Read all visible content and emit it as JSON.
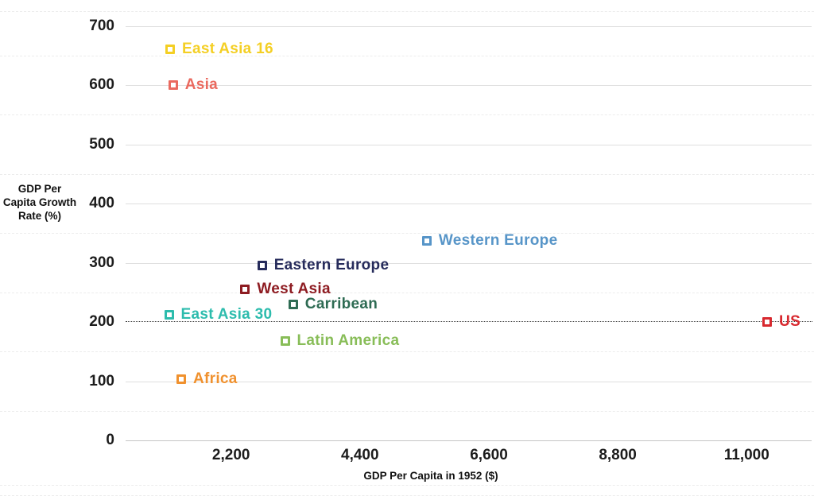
{
  "chart_data": {
    "type": "scatter",
    "title": "",
    "xlabel": "GDP Per Capita in 1952 ($)",
    "ylabel": "GDP Per Capita Growth Rate (%)",
    "ylabel_lines": [
      "GDP Per",
      "Capita Growth",
      "Rate (%)"
    ],
    "xlim": [
      400,
      12000
    ],
    "ylim": [
      0,
      725
    ],
    "grid_on": true,
    "legend": "labels-next-to-points",
    "marker_shape": "hollow-square",
    "text_color": "#1c1c1c",
    "x_ticks": [
      {
        "value": 2200,
        "label": "2,200"
      },
      {
        "value": 4400,
        "label": "4,400"
      },
      {
        "value": 6600,
        "label": "6,600"
      },
      {
        "value": 8800,
        "label": "8,800"
      },
      {
        "value": 11000,
        "label": "11,000"
      }
    ],
    "y_ticks": [
      {
        "value": 0,
        "label": "0"
      },
      {
        "value": 100,
        "label": "100"
      },
      {
        "value": 200,
        "label": "200"
      },
      {
        "value": 300,
        "label": "300"
      },
      {
        "value": 400,
        "label": "400"
      },
      {
        "value": 500,
        "label": "500"
      },
      {
        "value": 600,
        "label": "600"
      },
      {
        "value": 700,
        "label": "700"
      }
    ],
    "minor_gridline_values": [
      725,
      650,
      550,
      450,
      350,
      250,
      150,
      50,
      -75,
      -92
    ],
    "reference_line": {
      "value": 200,
      "style": "dotted",
      "color": "#3c3c3c"
    },
    "series": [
      {
        "name": "East Asia 16",
        "x": 1160,
        "y": 660,
        "color": "#F4CF24"
      },
      {
        "name": "Asia",
        "x": 1210,
        "y": 600,
        "color": "#EA6A5F"
      },
      {
        "name": "Western Europe",
        "x": 5540,
        "y": 337,
        "color": "#5795C8"
      },
      {
        "name": "Eastern Europe",
        "x": 2730,
        "y": 295,
        "color": "#262B5B"
      },
      {
        "name": "West Asia",
        "x": 2440,
        "y": 255,
        "color": "#8E1C22"
      },
      {
        "name": "Carribean",
        "x": 3260,
        "y": 230,
        "color": "#2E6B53"
      },
      {
        "name": "East Asia 30",
        "x": 1140,
        "y": 212,
        "color": "#2DBCAD"
      },
      {
        "name": "US",
        "x": 11350,
        "y": 200,
        "color": "#D8292F"
      },
      {
        "name": "Latin America",
        "x": 3120,
        "y": 168,
        "color": "#88BD58"
      },
      {
        "name": "Africa",
        "x": 1350,
        "y": 104,
        "color": "#F0912E"
      }
    ]
  }
}
